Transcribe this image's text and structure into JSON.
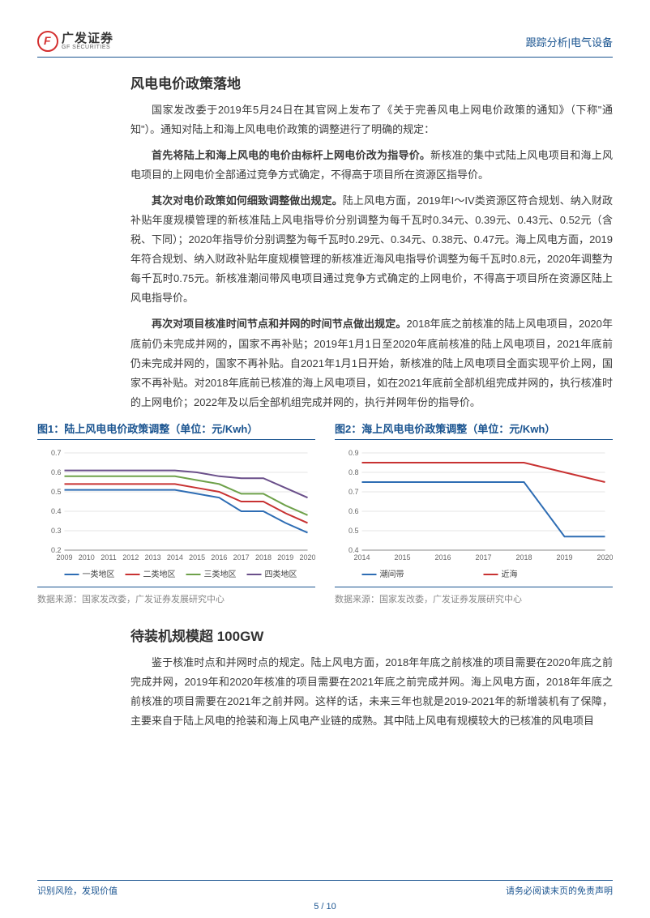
{
  "header": {
    "logo_cn": "广发证券",
    "logo_en": "GF SECURITIES",
    "category": "跟踪分析|电气设备"
  },
  "section1": {
    "title": "风电电价政策落地",
    "p1": "国家发改委于2019年5月24日在其官网上发布了《关于完善风电上网电价政策的通知》（下称\"通知\"）。通知对陆上和海上风电电价政策的调整进行了明确的规定：",
    "p2_bold": "首先将陆上和海上风电的电价由标杆上网电价改为指导价。",
    "p2_rest": "新核准的集中式陆上风电项目和海上风电项目的上网电价全部通过竞争方式确定，不得高于项目所在资源区指导价。",
    "p3_bold": "其次对电价政策如何细致调整做出规定。",
    "p3_rest": "陆上风电方面，2019年I～IV类资源区符合规划、纳入财政补贴年度规模管理的新核准陆上风电指导价分别调整为每千瓦时0.34元、0.39元、0.43元、0.52元（含税、下同）；2020年指导价分别调整为每千瓦时0.29元、0.34元、0.38元、0.47元。海上风电方面，2019年符合规划、纳入财政补贴年度规模管理的新核准近海风电指导价调整为每千瓦时0.8元，2020年调整为每千瓦时0.75元。新核准潮间带风电项目通过竞争方式确定的上网电价，不得高于项目所在资源区陆上风电指导价。",
    "p4_bold": "再次对项目核准时间节点和并网的时间节点做出规定。",
    "p4_rest": "2018年底之前核准的陆上风电项目，2020年底前仍未完成并网的，国家不再补贴；2019年1月1日至2020年底前核准的陆上风电项目，2021年底前仍未完成并网的，国家不再补贴。自2021年1月1日开始，新核准的陆上风电项目全面实现平价上网，国家不再补贴。对2018年底前已核准的海上风电项目，如在2021年底前全部机组完成并网的，执行核准时的上网电价；2022年及以后全部机组完成并网的，执行并网年份的指导价。"
  },
  "chart1": {
    "title": "图1：陆上风电电价政策调整（单位：元/Kwh）",
    "source": "数据来源：国家发改委，广发证券发展研究中心",
    "type": "line",
    "years": [
      "2009",
      "2010",
      "2011",
      "2012",
      "2013",
      "2014",
      "2015",
      "2016",
      "2017",
      "2018",
      "2019",
      "2020"
    ],
    "ylim": [
      0.2,
      0.7
    ],
    "yticks": [
      0.2,
      0.3,
      0.4,
      0.5,
      0.6,
      0.7
    ],
    "series": [
      {
        "name": "一类地区",
        "color": "#2e6db4",
        "data": [
          0.51,
          0.51,
          0.51,
          0.51,
          0.51,
          0.51,
          0.49,
          0.47,
          0.4,
          0.4,
          0.34,
          0.29
        ]
      },
      {
        "name": "二类地区",
        "color": "#c83232",
        "data": [
          0.54,
          0.54,
          0.54,
          0.54,
          0.54,
          0.54,
          0.52,
          0.5,
          0.45,
          0.45,
          0.39,
          0.34
        ]
      },
      {
        "name": "三类地区",
        "color": "#6ea14a",
        "data": [
          0.58,
          0.58,
          0.58,
          0.58,
          0.58,
          0.58,
          0.56,
          0.54,
          0.49,
          0.49,
          0.43,
          0.38
        ]
      },
      {
        "name": "四类地区",
        "color": "#6a4f8a",
        "data": [
          0.61,
          0.61,
          0.61,
          0.61,
          0.61,
          0.61,
          0.6,
          0.58,
          0.57,
          0.57,
          0.52,
          0.47
        ]
      }
    ]
  },
  "chart2": {
    "title": "图2：海上风电电价政策调整（单位：元/Kwh）",
    "source": "数据来源：国家发改委，广发证券发展研究中心",
    "type": "line",
    "years": [
      "2014",
      "2015",
      "2016",
      "2017",
      "2018",
      "2019",
      "2020"
    ],
    "ylim": [
      0.4,
      0.9
    ],
    "yticks": [
      0.4,
      0.5,
      0.6,
      0.7,
      0.8,
      0.9
    ],
    "series": [
      {
        "name": "潮间带",
        "color": "#2e6db4",
        "data": [
          0.75,
          0.75,
          0.75,
          0.75,
          0.75,
          0.47,
          0.47
        ]
      },
      {
        "name": "近海",
        "color": "#c83232",
        "data": [
          0.85,
          0.85,
          0.85,
          0.85,
          0.85,
          0.8,
          0.75
        ]
      }
    ]
  },
  "section2": {
    "title": "待装机规模超 100GW",
    "p1": "鉴于核准时点和并网时点的规定。陆上风电方面，2018年年底之前核准的项目需要在2020年底之前完成并网，2019年和2020年核准的项目需要在2021年底之前完成并网。海上风电方面，2018年年底之前核准的项目需要在2021年之前并网。这样的话，未来三年也就是2019-2021年的新增装机有了保障，主要来自于陆上风电的抢装和海上风电产业链的成熟。其中陆上风电有规模较大的已核准的风电项目"
  },
  "footer": {
    "left": "识别风险，发现价值",
    "right": "请务必阅读末页的免责声明",
    "page": "5 / 10"
  },
  "colors": {
    "brand_blue": "#1a5490",
    "text": "#3a3a3a"
  }
}
